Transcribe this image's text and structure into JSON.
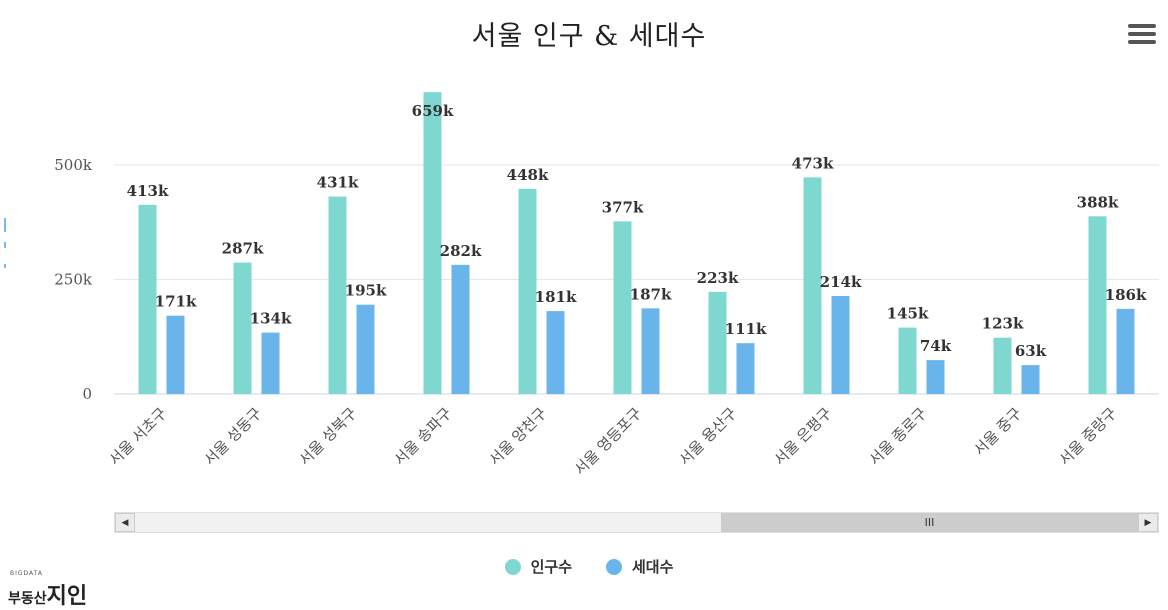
{
  "title": "서울 인구 & 세대수",
  "menu_icon": "hamburger-menu-icon",
  "scrollbar": {
    "left_arrow": "◀",
    "right_arrow": "▶",
    "thumb_grip": "III"
  },
  "logo": {
    "small": "BIGDATA",
    "text": "부동산",
    "brand": "지인"
  },
  "chart_data": {
    "type": "bar",
    "title": "서울 인구 & 세대수",
    "categories": [
      "서울 서초구",
      "서울 성동구",
      "서울 성북구",
      "서울 송파구",
      "서울 양천구",
      "서울 영등포구",
      "서울 용산구",
      "서울 은평구",
      "서울 종로구",
      "서울 중구",
      "서울 중랑구"
    ],
    "series": [
      {
        "name": "인구수",
        "color": "#7fd8d0",
        "values": [
          413,
          287,
          431,
          659,
          448,
          377,
          223,
          473,
          145,
          123,
          388
        ],
        "labels": [
          "413k",
          "287k",
          "431k",
          "659k",
          "448k",
          "377k",
          "223k",
          "473k",
          "145k",
          "123k",
          "388k"
        ]
      },
      {
        "name": "세대수",
        "color": "#6ab4ec",
        "values": [
          171,
          134,
          195,
          282,
          181,
          187,
          111,
          214,
          74,
          63,
          186
        ],
        "labels": [
          "171k",
          "134k",
          "195k",
          "282k",
          "181k",
          "187k",
          "111k",
          "214k",
          "74k",
          "63k",
          "186k"
        ]
      }
    ],
    "y_unit": "thousand",
    "y_ticks": [
      0,
      250,
      500
    ],
    "y_tick_labels": [
      "0",
      "250k",
      "500k"
    ],
    "ylim": [
      0,
      660
    ],
    "grid": true,
    "legend": "bottom-center"
  }
}
